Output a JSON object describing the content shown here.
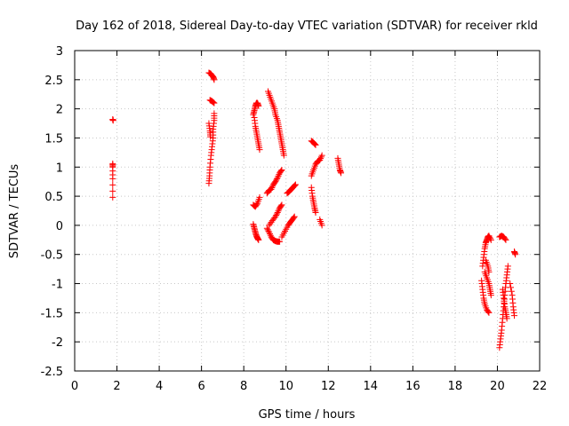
{
  "chart_data": {
    "type": "scatter",
    "title": "Day 162 of 2018, Sidereal Day-to-day VTEC variation (SDTVAR) for receiver rkld",
    "xlabel": "GPS time / hours",
    "ylabel": "SDTVAR / TECUs",
    "xlim": [
      0,
      22
    ],
    "ylim": [
      -2.5,
      3
    ],
    "xticks": [
      0,
      2,
      4,
      6,
      8,
      10,
      12,
      14,
      16,
      18,
      20,
      22
    ],
    "yticks": [
      -2.5,
      -2,
      -1.5,
      -1,
      -0.5,
      0,
      0.5,
      1,
      1.5,
      2,
      2.5,
      3
    ],
    "grid": true,
    "marker": "+",
    "color": "#ff0000",
    "series": [
      {
        "segments": [
          [
            [
              1.8,
              1.82
            ],
            [
              1.82,
              1.8
            ]
          ],
          [
            [
              1.8,
              1.06
            ],
            [
              1.8,
              1.0
            ],
            [
              1.8,
              0.8
            ],
            [
              1.8,
              0.48
            ]
          ],
          [
            [
              6.35,
              2.62
            ],
            [
              6.45,
              2.6
            ],
            [
              6.55,
              2.55
            ],
            [
              6.6,
              2.5
            ]
          ],
          [
            [
              6.4,
              2.15
            ],
            [
              6.5,
              2.13
            ],
            [
              6.6,
              2.1
            ]
          ],
          [
            [
              6.35,
              0.72
            ],
            [
              6.38,
              0.85
            ],
            [
              6.4,
              1.0
            ],
            [
              6.45,
              1.2
            ],
            [
              6.5,
              1.35
            ],
            [
              6.55,
              1.5
            ],
            [
              6.55,
              1.65
            ],
            [
              6.6,
              1.8
            ],
            [
              6.6,
              1.92
            ]
          ],
          [
            [
              6.35,
              1.75
            ],
            [
              6.4,
              1.62
            ],
            [
              6.42,
              1.52
            ]
          ],
          [
            [
              8.45,
              1.9
            ],
            [
              8.5,
              1.97
            ],
            [
              8.55,
              2.05
            ],
            [
              8.6,
              2.1
            ],
            [
              8.65,
              2.1
            ],
            [
              8.7,
              2.05
            ]
          ],
          [
            [
              8.5,
              1.85
            ],
            [
              8.55,
              1.7
            ],
            [
              8.6,
              1.6
            ],
            [
              8.65,
              1.5
            ],
            [
              8.7,
              1.4
            ],
            [
              8.75,
              1.3
            ]
          ],
          [
            [
              8.45,
              0.35
            ],
            [
              8.55,
              0.32
            ],
            [
              8.65,
              0.38
            ],
            [
              8.75,
              0.48
            ]
          ],
          [
            [
              8.45,
              0.02
            ],
            [
              8.5,
              -0.05
            ],
            [
              8.55,
              -0.12
            ],
            [
              8.6,
              -0.18
            ],
            [
              8.65,
              -0.22
            ],
            [
              8.7,
              -0.25
            ]
          ],
          [
            [
              9.15,
              2.3
            ],
            [
              9.25,
              2.2
            ],
            [
              9.35,
              2.1
            ],
            [
              9.45,
              2.0
            ],
            [
              9.5,
              1.9
            ],
            [
              9.6,
              1.8
            ],
            [
              9.65,
              1.7
            ],
            [
              9.7,
              1.6
            ],
            [
              9.75,
              1.5
            ],
            [
              9.8,
              1.4
            ],
            [
              9.85,
              1.3
            ],
            [
              9.9,
              1.2
            ]
          ],
          [
            [
              9.1,
              0.55
            ],
            [
              9.2,
              0.6
            ],
            [
              9.3,
              0.62
            ],
            [
              9.4,
              0.7
            ],
            [
              9.5,
              0.75
            ],
            [
              9.6,
              0.82
            ],
            [
              9.7,
              0.9
            ],
            [
              9.8,
              0.95
            ]
          ],
          [
            [
              9.1,
              -0.05
            ],
            [
              9.2,
              -0.12
            ],
            [
              9.3,
              -0.2
            ],
            [
              9.4,
              -0.25
            ],
            [
              9.5,
              -0.27
            ],
            [
              9.6,
              -0.28
            ],
            [
              9.7,
              -0.28
            ]
          ],
          [
            [
              9.2,
              0.0
            ],
            [
              9.35,
              0.08
            ],
            [
              9.5,
              0.15
            ],
            [
              9.6,
              0.22
            ],
            [
              9.7,
              0.3
            ],
            [
              9.8,
              0.35
            ]
          ],
          [
            [
              9.8,
              -0.2
            ],
            [
              9.95,
              -0.1
            ],
            [
              10.1,
              0.0
            ],
            [
              10.2,
              0.05
            ],
            [
              10.3,
              0.1
            ],
            [
              10.4,
              0.15
            ]
          ],
          [
            [
              10.05,
              0.55
            ],
            [
              10.15,
              0.58
            ],
            [
              10.25,
              0.62
            ],
            [
              10.35,
              0.66
            ],
            [
              10.45,
              0.7
            ]
          ],
          [
            [
              11.2,
              1.45
            ],
            [
              11.3,
              1.42
            ],
            [
              11.4,
              1.38
            ]
          ],
          [
            [
              11.2,
              0.85
            ],
            [
              11.3,
              0.95
            ],
            [
              11.4,
              1.05
            ],
            [
              11.5,
              1.1
            ],
            [
              11.6,
              1.12
            ],
            [
              11.7,
              1.2
            ]
          ],
          [
            [
              11.2,
              0.65
            ],
            [
              11.25,
              0.5
            ],
            [
              11.3,
              0.4
            ],
            [
              11.35,
              0.3
            ],
            [
              11.4,
              0.22
            ]
          ],
          [
            [
              11.6,
              0.1
            ],
            [
              11.7,
              0.0
            ]
          ],
          [
            [
              12.45,
              1.15
            ],
            [
              12.5,
              1.05
            ],
            [
              12.55,
              0.95
            ],
            [
              12.6,
              0.9
            ]
          ],
          [
            [
              19.3,
              -0.7
            ],
            [
              19.35,
              -0.55
            ],
            [
              19.4,
              -0.4
            ],
            [
              19.45,
              -0.3
            ],
            [
              19.5,
              -0.25
            ],
            [
              19.55,
              -0.2
            ],
            [
              19.6,
              -0.18
            ],
            [
              19.7,
              -0.25
            ]
          ],
          [
            [
              19.25,
              -0.95
            ],
            [
              19.3,
              -1.1
            ],
            [
              19.35,
              -1.25
            ],
            [
              19.4,
              -1.35
            ],
            [
              19.5,
              -1.45
            ],
            [
              19.6,
              -1.5
            ]
          ],
          [
            [
              19.4,
              -0.8
            ],
            [
              19.5,
              -0.9
            ],
            [
              19.6,
              -1.0
            ],
            [
              19.65,
              -1.1
            ],
            [
              19.7,
              -1.2
            ]
          ],
          [
            [
              19.45,
              -0.6
            ],
            [
              19.55,
              -0.7
            ],
            [
              19.6,
              -0.8
            ]
          ],
          [
            [
              20.1,
              -0.2
            ],
            [
              20.2,
              -0.18
            ],
            [
              20.3,
              -0.2
            ],
            [
              20.4,
              -0.25
            ]
          ],
          [
            [
              20.1,
              -2.1
            ],
            [
              20.15,
              -1.95
            ],
            [
              20.2,
              -1.8
            ],
            [
              20.25,
              -1.6
            ],
            [
              20.3,
              -1.4
            ],
            [
              20.35,
              -1.2
            ],
            [
              20.4,
              -1.0
            ],
            [
              20.45,
              -0.85
            ],
            [
              20.5,
              -0.7
            ]
          ],
          [
            [
              20.25,
              -1.1
            ],
            [
              20.3,
              -1.25
            ],
            [
              20.35,
              -1.4
            ],
            [
              20.4,
              -1.5
            ],
            [
              20.45,
              -1.6
            ]
          ],
          [
            [
              20.6,
              -1.0
            ],
            [
              20.7,
              -1.2
            ],
            [
              20.75,
              -1.4
            ],
            [
              20.8,
              -1.55
            ]
          ],
          [
            [
              20.8,
              -0.45
            ],
            [
              20.85,
              -0.5
            ]
          ]
        ]
      }
    ]
  }
}
